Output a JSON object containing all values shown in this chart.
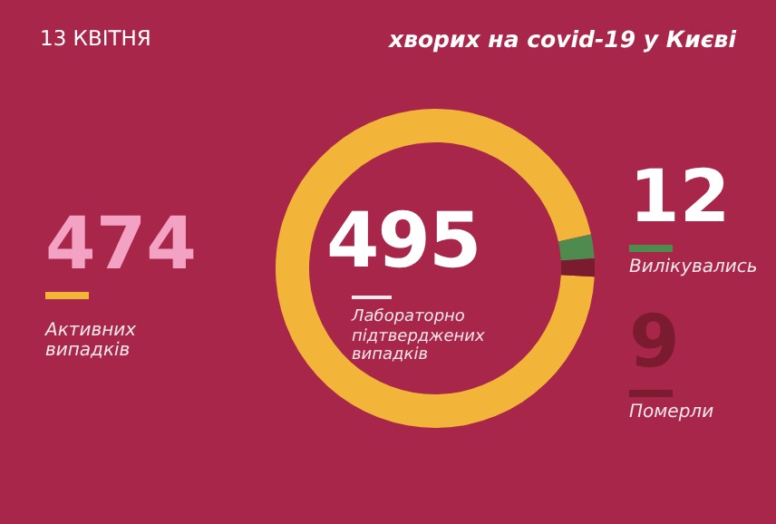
{
  "chart_data": {
    "type": "donut",
    "title": "хворих на covid-19 у Києві",
    "subtitle": "Лабораторно підтверджених випадків",
    "annotations": [
      "13 КВІТНЯ",
      "495"
    ],
    "categories": [
      "Активних випадків",
      "Вилікувались",
      "Померли"
    ],
    "values": [
      474,
      12,
      9
    ],
    "colors": [
      "#f2b53a",
      "#4f8a4e",
      "#7a1b30"
    ],
    "data_labels": true,
    "legend": "bottom left"
  }
}
